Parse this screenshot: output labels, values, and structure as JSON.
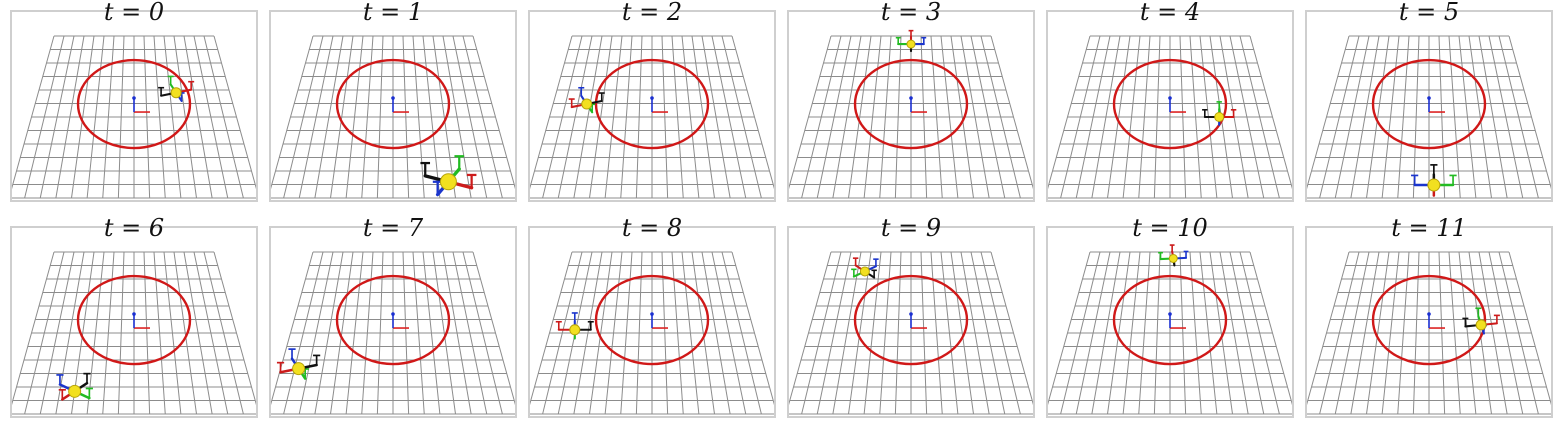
{
  "figure": {
    "panels": [
      {
        "label": "t = 0",
        "drone": {
          "u": 0.72,
          "v": 0.35,
          "scale": 1.0,
          "yaw": 20
        }
      },
      {
        "label": "t = 1",
        "drone": {
          "u": 0.73,
          "v": 0.9,
          "scale": 1.6,
          "yaw": -25
        }
      },
      {
        "label": "t = 2",
        "drone": {
          "u": 0.17,
          "v": 0.42,
          "scale": 1.0,
          "yaw": 200
        }
      },
      {
        "label": "t = 3",
        "drone": {
          "u": 0.5,
          "v": 0.05,
          "scale": 0.8,
          "yaw": 90
        }
      },
      {
        "label": "t = 4",
        "drone": {
          "u": 0.74,
          "v": 0.5,
          "scale": 0.9,
          "yaw": 0
        }
      },
      {
        "label": "t = 5",
        "drone": {
          "u": 0.52,
          "v": 0.92,
          "scale": 1.2,
          "yaw": -90
        }
      },
      {
        "label": "t = 6",
        "drone": {
          "u": 0.25,
          "v": 0.86,
          "scale": 1.2,
          "yaw": -130
        }
      },
      {
        "label": "t = 7",
        "drone": {
          "u": 0.08,
          "v": 0.72,
          "scale": 1.2,
          "yaw": -160
        }
      },
      {
        "label": "t = 8",
        "drone": {
          "u": 0.12,
          "v": 0.48,
          "scale": 1.0,
          "yaw": 180
        }
      },
      {
        "label": "t = 9",
        "drone": {
          "u": 0.23,
          "v": 0.12,
          "scale": 0.9,
          "yaw": 130
        }
      },
      {
        "label": "t = 10",
        "drone": {
          "u": 0.52,
          "v": 0.04,
          "scale": 0.8,
          "yaw": 95
        }
      },
      {
        "label": "t = 11",
        "drone": {
          "u": 0.76,
          "v": 0.45,
          "scale": 1.0,
          "yaw": 10
        }
      }
    ],
    "colors": {
      "grid": "#8c8c8c",
      "circle": "#d01818",
      "axis_x": "#dd2222",
      "axis_y": "#1a2fd0",
      "body": "#f2e020",
      "arm_green": "#22bb22",
      "arm_black": "#111111",
      "arm_red": "#cc1b1b",
      "arm_blue": "#1b35cc",
      "border": "#cfcfcf"
    }
  }
}
